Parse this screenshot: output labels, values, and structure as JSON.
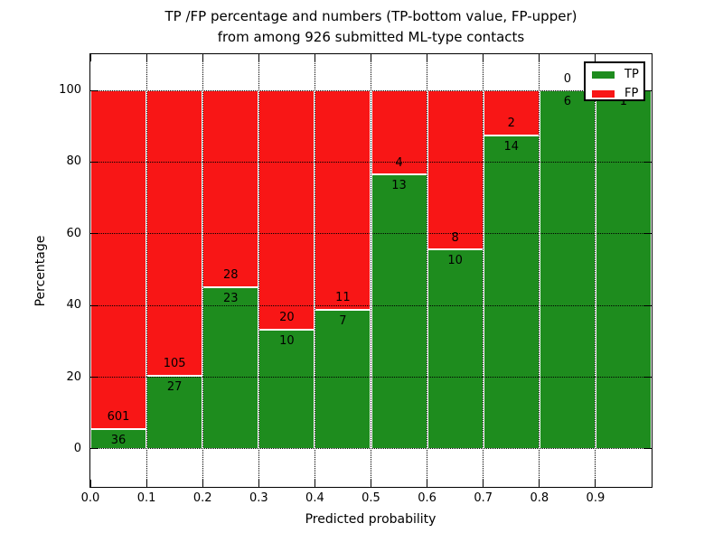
{
  "chart_data": {
    "type": "bar",
    "stacking": "percentage",
    "title_line1": "TP /FP percentage and numbers (TP-bottom value, FP-upper)",
    "title_line2": "from among 926 submitted ML-type contacts",
    "xlabel": "Predicted probability",
    "ylabel": "Percentage",
    "xlim": [
      0.0,
      1.0
    ],
    "ylim": [
      -10.6,
      110.1
    ],
    "grid": true,
    "grid_style": "dotted-black-over-bars",
    "xtick_labels": [
      "0.0",
      "0.1",
      "0.2",
      "0.3",
      "0.4",
      "0.5",
      "0.6",
      "0.7",
      "0.8",
      "0.9"
    ],
    "xtick_values": [
      0.0,
      0.1,
      0.2,
      0.3,
      0.4,
      0.5,
      0.6,
      0.7,
      0.8,
      0.9
    ],
    "ytick_labels": [
      "0",
      "20",
      "40",
      "60",
      "80",
      "100"
    ],
    "ytick_values": [
      0,
      20,
      40,
      60,
      80,
      100
    ],
    "legend_position": "upper-right",
    "legend": [
      {
        "label": "TP",
        "color": "#1e8c1e"
      },
      {
        "label": "FP",
        "color": "#f81616"
      }
    ],
    "bar_edge_color": "#ffffff",
    "bins": [
      {
        "x_start": 0.0,
        "x_end": 0.1,
        "tp": 36,
        "fp": 601,
        "tp_pct": 5.7
      },
      {
        "x_start": 0.1,
        "x_end": 0.2,
        "tp": 27,
        "fp": 105,
        "tp_pct": 20.5
      },
      {
        "x_start": 0.2,
        "x_end": 0.3,
        "tp": 23,
        "fp": 28,
        "tp_pct": 45.1
      },
      {
        "x_start": 0.3,
        "x_end": 0.4,
        "tp": 10,
        "fp": 20,
        "tp_pct": 33.3
      },
      {
        "x_start": 0.4,
        "x_end": 0.5,
        "tp": 7,
        "fp": 11,
        "tp_pct": 38.9
      },
      {
        "x_start": 0.5,
        "x_end": 0.6,
        "tp": 13,
        "fp": 4,
        "tp_pct": 76.5
      },
      {
        "x_start": 0.6,
        "x_end": 0.7,
        "tp": 10,
        "fp": 8,
        "tp_pct": 55.6
      },
      {
        "x_start": 0.7,
        "x_end": 0.8,
        "tp": 14,
        "fp": 2,
        "tp_pct": 87.5
      },
      {
        "x_start": 0.8,
        "x_end": 0.9,
        "tp": 6,
        "fp": 0,
        "tp_pct": 100
      },
      {
        "x_start": 0.9,
        "x_end": 1.0,
        "tp": 1,
        "fp": 0,
        "tp_pct": 100
      }
    ]
  }
}
